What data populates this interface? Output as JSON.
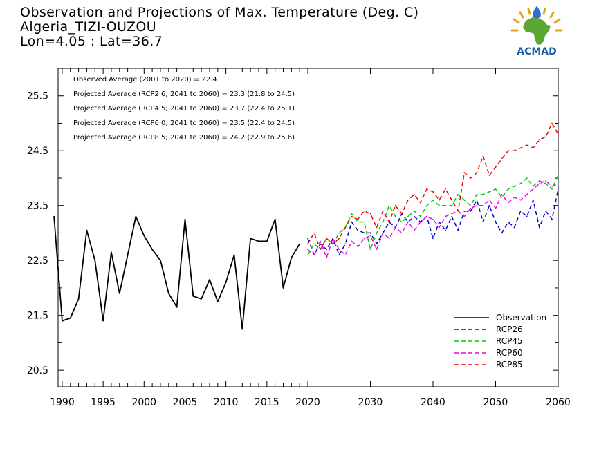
{
  "header": {
    "line1": "Observation and Projections of Max. Temperature (Deg. C)",
    "line2": "Algeria_TIZI-OUZOU",
    "line3": "Lon=4.05 : Lat=36.7"
  },
  "logo": {
    "text": "ACMAD",
    "colors": {
      "africa": "#5aa832",
      "text": "#1b5fa8",
      "drop": "#2f6fd0",
      "sun": "#e6a317"
    }
  },
  "chart_data": {
    "type": "line",
    "title": "Observation and Projections of Max. Temperature (Deg. C)",
    "xlim": [
      1989.5,
      2060
    ],
    "ylim": [
      20.2,
      26.0
    ],
    "x_ticks": [
      1990,
      1995,
      2000,
      2005,
      2010,
      2015,
      2020,
      2030,
      2040,
      2050,
      2060
    ],
    "y_ticks": [
      20.5,
      21.5,
      22.5,
      23.5,
      24.5,
      25.5
    ],
    "annotations": [
      "Observed Average (2001 to 2020) = 22.4",
      "Projected Average (RCP2.6; 2041 to 2060) = 23.3 (21.8 to 24.5)",
      "Projected Average (RCP4.5; 2041 to 2060) = 23.7 (22.4 to 25.1)",
      "Projected Average (RCP6.0; 2041 to 2060) = 23.5 (22.4 to 24.5)",
      "Projected Average (RCP8.5; 2041 to 2060) = 24.2 (22.9 to 25.6)"
    ],
    "legend_position": "bottom-right",
    "series": [
      {
        "name": "Observation",
        "color": "#000000",
        "dashed": false,
        "x": [
          1989,
          1990,
          1991,
          1992,
          1993,
          1994,
          1995,
          1996,
          1997,
          1998,
          1999,
          2000,
          2001,
          2002,
          2003,
          2004,
          2005,
          2006,
          2007,
          2008,
          2009,
          2010,
          2011,
          2012,
          2013,
          2014,
          2015,
          2016,
          2017,
          2018,
          2019
        ],
        "y": [
          23.3,
          21.4,
          21.45,
          21.8,
          23.05,
          22.5,
          21.4,
          22.65,
          21.9,
          22.6,
          23.3,
          22.95,
          22.7,
          22.5,
          21.9,
          21.65,
          23.25,
          21.85,
          21.8,
          22.15,
          21.75,
          22.1,
          22.6,
          21.25,
          22.9,
          22.85,
          22.85,
          23.25,
          22.0,
          22.55,
          22.8
        ]
      },
      {
        "name": "RCP26",
        "color": "#0000cc",
        "dashed": true,
        "x": [
          2020,
          2021,
          2022,
          2023,
          2024,
          2025,
          2026,
          2027,
          2028,
          2029,
          2030,
          2031,
          2032,
          2033,
          2034,
          2035,
          2036,
          2037,
          2038,
          2039,
          2040,
          2041,
          2042,
          2043,
          2044,
          2045,
          2046,
          2047,
          2048,
          2049,
          2050,
          2051,
          2052,
          2053,
          2054,
          2055,
          2056,
          2057,
          2058,
          2059,
          2060
        ],
        "y": [
          22.9,
          22.6,
          22.8,
          22.7,
          22.9,
          22.6,
          22.8,
          23.2,
          23.05,
          23.0,
          23.0,
          22.8,
          23.0,
          23.2,
          23.1,
          23.35,
          23.2,
          23.3,
          23.2,
          23.3,
          22.9,
          23.2,
          23.05,
          23.3,
          23.05,
          23.4,
          23.4,
          23.6,
          23.2,
          23.5,
          23.2,
          23.0,
          23.2,
          23.1,
          23.4,
          23.3,
          23.6,
          23.1,
          23.4,
          23.25,
          23.8
        ]
      },
      {
        "name": "RCP45",
        "color": "#00cc00",
        "dashed": true,
        "x": [
          2020,
          2021,
          2022,
          2023,
          2024,
          2025,
          2026,
          2027,
          2028,
          2029,
          2030,
          2031,
          2032,
          2033,
          2034,
          2035,
          2036,
          2037,
          2038,
          2039,
          2040,
          2041,
          2042,
          2043,
          2044,
          2045,
          2046,
          2047,
          2048,
          2049,
          2050,
          2051,
          2052,
          2053,
          2054,
          2055,
          2056,
          2057,
          2058,
          2059,
          2060
        ],
        "y": [
          22.6,
          22.8,
          22.7,
          22.9,
          22.8,
          23.0,
          23.1,
          23.35,
          23.2,
          23.2,
          22.7,
          23.0,
          23.2,
          23.5,
          23.3,
          23.2,
          23.3,
          23.4,
          23.3,
          23.5,
          23.6,
          23.5,
          23.5,
          23.5,
          23.7,
          23.6,
          23.5,
          23.7,
          23.7,
          23.75,
          23.8,
          23.65,
          23.8,
          23.85,
          23.9,
          24.0,
          23.85,
          23.95,
          23.9,
          23.8,
          24.05
        ]
      },
      {
        "name": "RCP60",
        "color": "#ee00ee",
        "dashed": true,
        "x": [
          2020,
          2021,
          2022,
          2023,
          2024,
          2025,
          2026,
          2027,
          2028,
          2029,
          2030,
          2031,
          2032,
          2033,
          2034,
          2035,
          2036,
          2037,
          2038,
          2039,
          2040,
          2041,
          2042,
          2043,
          2044,
          2045,
          2046,
          2047,
          2048,
          2049,
          2050,
          2051,
          2052,
          2053,
          2054,
          2055,
          2056,
          2057,
          2058,
          2059,
          2060
        ],
        "y": [
          22.7,
          22.6,
          22.85,
          22.55,
          22.9,
          22.7,
          22.6,
          22.85,
          22.75,
          22.9,
          22.95,
          22.7,
          23.0,
          22.9,
          23.1,
          23.0,
          23.2,
          23.05,
          23.2,
          23.3,
          23.25,
          23.1,
          23.3,
          23.35,
          23.4,
          23.3,
          23.45,
          23.5,
          23.5,
          23.6,
          23.45,
          23.7,
          23.55,
          23.65,
          23.6,
          23.7,
          23.8,
          23.9,
          23.95,
          23.85,
          23.9
        ]
      },
      {
        "name": "RCP85",
        "color": "#ee0000",
        "dashed": true,
        "x": [
          2020,
          2021,
          2022,
          2023,
          2024,
          2025,
          2026,
          2027,
          2028,
          2029,
          2030,
          2031,
          2032,
          2033,
          2034,
          2035,
          2036,
          2037,
          2038,
          2039,
          2040,
          2041,
          2042,
          2043,
          2044,
          2045,
          2046,
          2047,
          2048,
          2049,
          2050,
          2051,
          2052,
          2053,
          2054,
          2055,
          2056,
          2057,
          2058,
          2059,
          2060
        ],
        "y": [
          22.8,
          23.0,
          22.7,
          22.9,
          22.8,
          22.9,
          23.1,
          23.3,
          23.25,
          23.4,
          23.35,
          23.1,
          23.4,
          23.2,
          23.5,
          23.35,
          23.6,
          23.7,
          23.55,
          23.8,
          23.75,
          23.6,
          23.8,
          23.6,
          23.4,
          24.1,
          24.0,
          24.1,
          24.4,
          24.05,
          24.2,
          24.35,
          24.5,
          24.5,
          24.55,
          24.6,
          24.55,
          24.7,
          24.75,
          25.0,
          24.8
        ]
      }
    ]
  }
}
